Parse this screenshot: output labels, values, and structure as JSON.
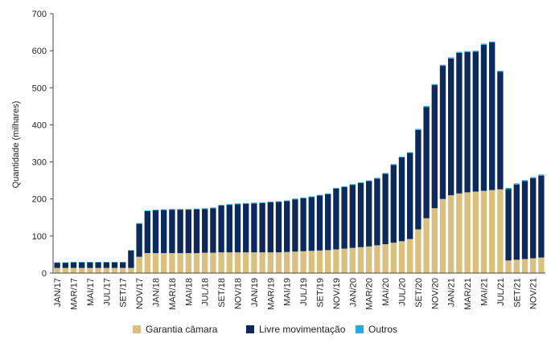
{
  "chart_data": {
    "type": "bar",
    "stacked": true,
    "ylabel": "Quantidade (milhares)",
    "xlabel": "",
    "ylim": [
      0,
      700
    ],
    "yticks": [
      0,
      100,
      200,
      300,
      400,
      500,
      600,
      700
    ],
    "grid": false,
    "legend_position": "bottom",
    "categories": [
      "JAN/17",
      "FEV/17",
      "MAR/17",
      "ABR/17",
      "MAI/17",
      "JUN/17",
      "JUL/17",
      "AGO/17",
      "SET/17",
      "OUT/17",
      "NOV/17",
      "DEZ/17",
      "JAN/18",
      "FEV/18",
      "MAR/18",
      "ABR/18",
      "MAI/18",
      "JUN/18",
      "JUL/18",
      "AGO/18",
      "SET/18",
      "OUT/18",
      "NOV/18",
      "DEZ/18",
      "JAN/19",
      "FEV/19",
      "MAR/19",
      "ABR/19",
      "MAI/19",
      "JUN/19",
      "JUL/19",
      "AGO/19",
      "SET/19",
      "OUT/19",
      "NOV/19",
      "DEZ/19",
      "JAN/20",
      "FEV/20",
      "MAR/20",
      "ABR/20",
      "MAI/20",
      "JUN/20",
      "JUL/20",
      "AGO/20",
      "SET/20",
      "OUT/20",
      "NOV/20",
      "DEZ/20",
      "JAN/21",
      "FEV/21",
      "MAR/21",
      "ABR/21",
      "MAI/21",
      "JUN/21",
      "JUL/21",
      "AGO/21",
      "SET/21",
      "OUT/21",
      "NOV/21",
      "DEZ/21"
    ],
    "tick_labels": [
      "JAN/17",
      "MAR/17",
      "MAI/17",
      "JUL/17",
      "SET/17",
      "NOV/17",
      "JAN/18",
      "MAR/18",
      "MAI/18",
      "JUL/18",
      "SET/18",
      "NOV/18",
      "JAN/19",
      "MAR/19",
      "MAI/19",
      "JUL/19",
      "SET/19",
      "NOV/19",
      "JAN/20",
      "MAR/20",
      "MAI/20",
      "JUL/20",
      "SET/20",
      "NOV/20",
      "JAN/21",
      "MAR/21",
      "MAI/21",
      "JUL/21",
      "SET/21",
      "NOV/21"
    ],
    "series": [
      {
        "name": "Garantia câmara",
        "color": "#d9c07e",
        "values": [
          14,
          14,
          14,
          14,
          14,
          14,
          14,
          14,
          14,
          14,
          44,
          54,
          54,
          54,
          54,
          54,
          54,
          54,
          55,
          55,
          56,
          56,
          56,
          56,
          56,
          56,
          56,
          56,
          57,
          58,
          59,
          60,
          61,
          62,
          64,
          66,
          68,
          70,
          72,
          75,
          78,
          82,
          86,
          92,
          118,
          148,
          175,
          200,
          210,
          215,
          218,
          220,
          222,
          224,
          226,
          34,
          36,
          38,
          40,
          42
        ]
      },
      {
        "name": "Livre movimentação",
        "color": "#0b2a5b",
        "values": [
          14,
          14,
          15,
          15,
          15,
          15,
          15,
          15,
          15,
          47,
          89,
          113,
          115,
          116,
          117,
          117,
          117,
          118,
          118,
          120,
          126,
          128,
          130,
          131,
          132,
          133,
          135,
          136,
          137,
          141,
          143,
          145,
          148,
          151,
          164,
          166,
          170,
          173,
          176,
          180,
          190,
          210,
          226,
          232,
          268,
          300,
          332,
          359,
          369,
          379,
          378,
          377,
          394,
          398,
          317,
          193,
          203,
          210,
          216,
          221
        ]
      },
      {
        "name": "Outros",
        "color": "#29a8e0",
        "values": [
          1,
          1,
          1,
          1,
          1,
          1,
          1,
          1,
          1,
          1,
          2,
          2,
          2,
          2,
          2,
          2,
          2,
          2,
          2,
          2,
          2,
          2,
          2,
          2,
          2,
          2,
          2,
          2,
          2,
          2,
          2,
          2,
          2,
          2,
          2,
          2,
          2,
          2,
          2,
          2,
          2,
          2,
          2,
          2,
          3,
          3,
          3,
          3,
          3,
          3,
          3,
          3,
          3,
          3,
          3,
          3,
          3,
          3,
          3,
          3
        ]
      }
    ]
  }
}
